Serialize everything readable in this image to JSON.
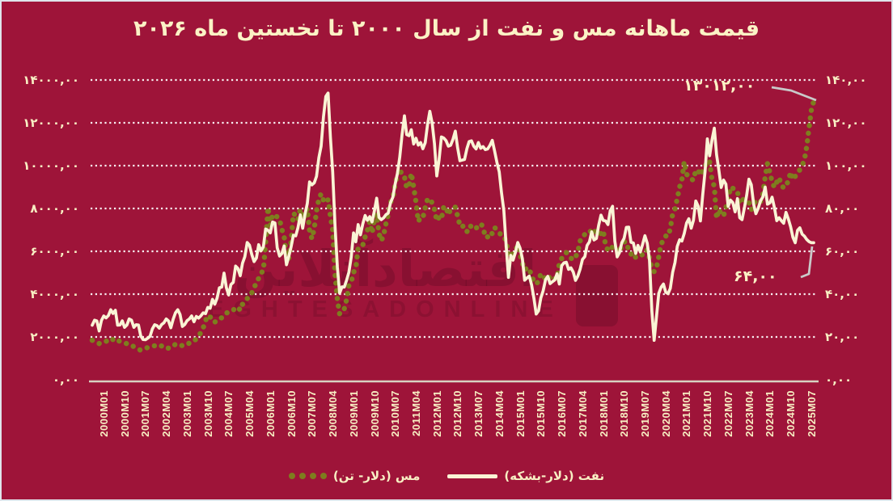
{
  "page": {
    "background_color": "#9E1439",
    "border_color": "#DFE5EB",
    "text_color": "#F8EFC3"
  },
  "chart": {
    "title": "قیمت ماهانه مس و نفت از سال ۲۰۰۰ تا نخستین ماه ۲۰۲۶",
    "watermark": {
      "persian": "اقتصادآنلاین",
      "latin": "EGHTESADONLINE"
    },
    "left_axis_labels": [
      "۱۴۰۰۰,۰۰",
      "۱۲۰۰۰,۰۰",
      "۱۰۰۰۰,۰۰",
      "۸۰۰۰,۰۰",
      "۶۰۰۰,۰۰",
      "۴۰۰۰,۰۰",
      "۲۰۰۰,۰۰",
      "۰,۰۰"
    ],
    "right_axis_labels": [
      "۱۴۰,۰۰",
      "۱۲۰,۰۰",
      "۱۰۰,۰۰",
      "۸۰,۰۰",
      "۶۰,۰۰",
      "۴۰,۰۰",
      "۲۰,۰۰",
      "۰,۰۰"
    ],
    "annotations": [
      {
        "label": "۱۳۰۱۲,۰۰",
        "series": "copper",
        "value": 13012
      },
      {
        "label": "۶۴,۰۰",
        "series": "oil",
        "value": 64
      }
    ],
    "legend": [
      {
        "label": "مس (دلار- تن)",
        "marker": "dots",
        "color": "#7E7D1E"
      },
      {
        "label": "نفت (دلار-بشکه)",
        "marker": "line",
        "color": "#FAF4D5"
      }
    ]
  },
  "chart_data": {
    "type": "line",
    "title": "قیمت ماهانه مس و نفت از سال ۲۰۰۰ تا نخستین ماه ۲۰۲۶",
    "x_start": "2000M01",
    "x_end": "2026M01",
    "x_frequency": "monthly",
    "x_tick_step_months": 9,
    "x_tick_labels": [
      "2000M01",
      "2000M10",
      "2001M07",
      "2002M04",
      "2003M01",
      "2003M10",
      "2004M07",
      "2005M04",
      "2006M01",
      "2006M10",
      "2007M07",
      "2008M04",
      "2009M01",
      "2009M10",
      "2010M07",
      "2011M04",
      "2012M01",
      "2012M10",
      "2013M07",
      "2014M04",
      "2015M01",
      "2015M10",
      "2016M07",
      "2017M04",
      "2018M01",
      "2018M10",
      "2019M07",
      "2020M04",
      "2021M01",
      "2021M10",
      "2022M07",
      "2023M04",
      "2024M01",
      "2024M10",
      "2025M07"
    ],
    "grid": "horizontal-dotted-white",
    "legend_position": "bottom-center",
    "axes": {
      "left": {
        "series": "مس (دلار- تن)",
        "min": 0,
        "max": 14000,
        "step": 2000
      },
      "right": {
        "series": "نفت (دلار-بشکه)",
        "min": 0,
        "max": 140,
        "step": 20
      }
    },
    "series": [
      {
        "name": "مس (دلار- تن)",
        "axis": "left",
        "style": "round-dotted",
        "color": "#7E7D1E",
        "last_value": 13012,
        "monthly_values": [
          1844,
          1779,
          1740,
          1694,
          1750,
          1755,
          1795,
          1863,
          1938,
          1877,
          1780,
          1845,
          1788,
          1763,
          1740,
          1680,
          1679,
          1623,
          1540,
          1470,
          1427,
          1377,
          1425,
          1465,
          1508,
          1556,
          1590,
          1589,
          1593,
          1641,
          1578,
          1474,
          1480,
          1480,
          1578,
          1594,
          1655,
          1685,
          1657,
          1583,
          1643,
          1684,
          1710,
          1762,
          1792,
          1920,
          2055,
          2201,
          2423,
          2759,
          3007,
          2945,
          2733,
          2685,
          2808,
          2857,
          2893,
          3012,
          3122,
          3146,
          3170,
          3254,
          3380,
          3394,
          3249,
          3524,
          3614,
          3798,
          3858,
          4060,
          4269,
          4577,
          4734,
          4982,
          5103,
          6388,
          8046,
          7198,
          7712,
          7697,
          7602,
          7500,
          7029,
          6691,
          5670,
          5676,
          6452,
          7766,
          7682,
          7476,
          7973,
          7510,
          7649,
          8008,
          6966,
          6588,
          7061,
          7887,
          8439,
          8685,
          8383,
          8260,
          8414,
          7634,
          6992,
          4926,
          3757,
          3072,
          3221,
          3315,
          3750,
          4407,
          4569,
          5014,
          5216,
          6165,
          6196,
          6288,
          6676,
          6982,
          7386,
          6848,
          7463,
          7745,
          6838,
          6499,
          6735,
          7284,
          7709,
          8292,
          8470,
          9147,
          9556,
          9868,
          9530,
          9483,
          8959,
          9045,
          9650,
          9001,
          8300,
          7394,
          7581,
          7565,
          8040,
          8441,
          8457,
          8260,
          7956,
          7420,
          7584,
          7500,
          8095,
          8062,
          7700,
          7966,
          8047,
          8061,
          7645,
          7203,
          7240,
          7000,
          6906,
          7193,
          7159,
          7203,
          7070,
          7214,
          7291,
          7149,
          6650,
          6674,
          6891,
          6821,
          7113,
          7001,
          6872,
          6737,
          6713,
          6446,
          5830,
          5729,
          5939,
          6042,
          6295,
          5833,
          5456,
          5127,
          5217,
          5216,
          4799,
          4639,
          4472,
          4599,
          4954,
          4873,
          4694,
          4642,
          4865,
          4751,
          4722,
          4731,
          5451,
          5660,
          5755,
          5941,
          5824,
          5684,
          5600,
          5720,
          5985,
          6486,
          6577,
          6808,
          6827,
          6834,
          7066,
          7007,
          6799,
          6852,
          6825,
          6966,
          6250,
          6051,
          6020,
          6220,
          6196,
          6075,
          5932,
          6300,
          6439,
          6445,
          6017,
          5868,
          5940,
          5708,
          5759,
          5757,
          5860,
          6066,
          6049,
          5686,
          5178,
          5048,
          5234,
          5742,
          6353,
          6497,
          6712,
          6703,
          7063,
          7755,
          7971,
          8460,
          9005,
          9336,
          10184,
          9613,
          9435,
          9370,
          9324,
          9801,
          9766,
          9550,
          9782,
          9941,
          10237,
          10183,
          9362,
          9028,
          7530,
          7959,
          7734,
          7650,
          8050,
          8367,
          8999,
          8950,
          8850,
          8800,
          8234,
          8386,
          8450,
          8350,
          8266,
          7940,
          8150,
          8385,
          8340,
          8310,
          8680,
          9470,
          10100,
          9700,
          9240,
          8990,
          9230,
          9440,
          9100,
          8960,
          9050,
          9300,
          9700,
          9350,
          9500,
          9700,
          9800,
          10000,
          10300,
          10900,
          11800,
          12600,
          13012
        ]
      },
      {
        "name": "نفت (دلار-بشکه)",
        "axis": "right",
        "style": "solid",
        "color": "#FAF4D5",
        "last_value": 64,
        "monthly_values": [
          25.5,
          27.8,
          27.5,
          22.8,
          27.7,
          29.8,
          28.9,
          30,
          32.7,
          31,
          32.5,
          25.5,
          25.6,
          27.5,
          24.5,
          25.6,
          28.4,
          27.8,
          24.5,
          25.7,
          25.6,
          20.5,
          18.8,
          18.7,
          19.4,
          20.3,
          23.7,
          25.7,
          25.3,
          24.1,
          25.8,
          26.6,
          28.4,
          27.5,
          24.3,
          28.3,
          31.3,
          32.7,
          30.5,
          24.9,
          25.8,
          27.6,
          28.4,
          29.8,
          27.1,
          29.6,
          28.8,
          29.9,
          31.3,
          30.9,
          33.8,
          33.4,
          37.6,
          35.3,
          38.2,
          43,
          43.3,
          49.8,
          43.1,
          39.6,
          44.5,
          45.5,
          53.1,
          52,
          48.6,
          54.4,
          57.5,
          64.1,
          62.9,
          58.5,
          55.2,
          56.9,
          63.1,
          60.2,
          62.1,
          70.4,
          69.8,
          68.6,
          73.7,
          73.2,
          61.7,
          57.8,
          58.9,
          62.5,
          53.7,
          57.6,
          62.1,
          67.5,
          67.2,
          71.1,
          77,
          70.8,
          77.2,
          82.3,
          92.4,
          91,
          92,
          95,
          103.7,
          109.1,
          122.8,
          132.3,
          133.9,
          113.2,
          97.1,
          71.9,
          52.5,
          40.4,
          43.4,
          43.3,
          46.5,
          50.2,
          57.3,
          68.6,
          64.4,
          72.5,
          67.7,
          72.8,
          76.7,
          74.5,
          76.2,
          73.7,
          78.8,
          84.8,
          75.9,
          74.8,
          75.6,
          77.1,
          77.8,
          82.7,
          85.3,
          91.4,
          96.5,
          104,
          114.6,
          123.3,
          114.5,
          114,
          116.8,
          110.1,
          112.8,
          109.6,
          110.8,
          107.9,
          110.7,
          119.3,
          125.4,
          119.8,
          110.3,
          95.2,
          102.6,
          113.4,
          112.9,
          111.7,
          109.1,
          109.5,
          112.3,
          116.1,
          108.5,
          102.3,
          102.6,
          102.9,
          107.9,
          111.3,
          111.6,
          109.1,
          107.8,
          110.8,
          108.1,
          108.9,
          107.5,
          107.8,
          109.5,
          111.8,
          106.8,
          101.6,
          97.1,
          87.4,
          79,
          62.3,
          47.8,
          58.1,
          55.9,
          59.5,
          64.1,
          61.5,
          56.6,
          46.5,
          47.6,
          48.4,
          44.3,
          38,
          30.7,
          32.2,
          38.2,
          41.6,
          46.7,
          48.3,
          44.9,
          45.8,
          46.6,
          49.5,
          44.7,
          53.3,
          54.6,
          54.9,
          51.6,
          52.3,
          50.3,
          46.4,
          48.5,
          51.7,
          56.2,
          57.5,
          62.7,
          64.4,
          69.1,
          65.3,
          66,
          72.1,
          76.9,
          74.4,
          74.2,
          72.5,
          78.9,
          81,
          64.8,
          57.4,
          59.4,
          64,
          66.1,
          71.2,
          71.3,
          64.2,
          63.9,
          59,
          62.8,
          59.7,
          63.2,
          67.3,
          63.7,
          55.7,
          32,
          18.4,
          29.4,
          40.3,
          43.2,
          44.7,
          40.9,
          40.2,
          42.7,
          50.2,
          54.8,
          62.3,
          65.4,
          64.8,
          68.3,
          73.2,
          75.2,
          70.8,
          74.5,
          83.5,
          81.1,
          74.2,
          86.5,
          97.1,
          112.5,
          104.6,
          112,
          117.5,
          105.1,
          97.7,
          89.8,
          93.3,
          91.4,
          81,
          83.9,
          82.8,
          78.4,
          84.6,
          75.7,
          74.8,
          80.1,
          86.2,
          93.7,
          91.1,
          82,
          77.6,
          80.1,
          83.5,
          85.4,
          90,
          82,
          82.6,
          85.3,
          80.4,
          74.3,
          75.7,
          74.3,
          73.1,
          78.2,
          75.1,
          71.5,
          66.5,
          64,
          69.8,
          71,
          68,
          67,
          65.5,
          64.5,
          64,
          64
        ]
      }
    ],
    "annotations": [
      {
        "label": "۱۳۰۱۲,۰۰",
        "series": "مس (دلار- تن)",
        "x": "2026M01",
        "value": 13012
      },
      {
        "label": "۶۴,۰۰",
        "series": "نفت (دلار-بشکه)",
        "x": "2026M01",
        "value": 64
      }
    ]
  }
}
